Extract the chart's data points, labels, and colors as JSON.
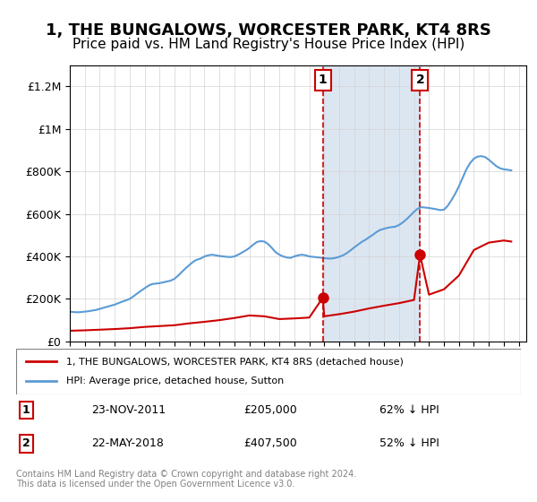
{
  "title": "1, THE BUNGALOWS, WORCESTER PARK, KT4 8RS",
  "subtitle": "Price paid vs. HM Land Registry's House Price Index (HPI)",
  "title_fontsize": 13,
  "subtitle_fontsize": 11,
  "xlabel": "",
  "ylabel": "",
  "ylim": [
    0,
    1300000
  ],
  "xlim_start": 1995.0,
  "xlim_end": 2025.5,
  "yticks": [
    0,
    200000,
    400000,
    600000,
    800000,
    1000000,
    1200000
  ],
  "ytick_labels": [
    "£0",
    "£200K",
    "£400K",
    "£600K",
    "£800K",
    "£1M",
    "£1.2M"
  ],
  "xticks": [
    1995,
    1996,
    1997,
    1998,
    1999,
    2000,
    2001,
    2002,
    2003,
    2004,
    2005,
    2006,
    2007,
    2008,
    2009,
    2010,
    2011,
    2012,
    2013,
    2014,
    2015,
    2016,
    2017,
    2018,
    2019,
    2020,
    2021,
    2022,
    2023,
    2024,
    2025
  ],
  "transaction1_x": 2011.9,
  "transaction1_y": 205000,
  "transaction1_label": "1",
  "transaction1_date": "23-NOV-2011",
  "transaction1_price": "£205,000",
  "transaction1_hpi": "62% ↓ HPI",
  "transaction2_x": 2018.4,
  "transaction2_y": 407500,
  "transaction2_label": "2",
  "transaction2_date": "22-MAY-2018",
  "transaction2_price": "£407,500",
  "transaction2_hpi": "52% ↓ HPI",
  "red_line_color": "#cc0000",
  "blue_line_color": "#5b9bd5",
  "blue_fill_color": "#dce6f1",
  "vline_color": "#cc0000",
  "legend_label_red": "1, THE BUNGALOWS, WORCESTER PARK, KT4 8RS (detached house)",
  "legend_label_blue": "HPI: Average price, detached house, Sutton",
  "footnote": "Contains HM Land Registry data © Crown copyright and database right 2024.\nThis data is licensed under the Open Government Licence v3.0.",
  "hpi_years": [
    1995.0,
    1995.25,
    1995.5,
    1995.75,
    1996.0,
    1996.25,
    1996.5,
    1996.75,
    1997.0,
    1997.25,
    1997.5,
    1997.75,
    1998.0,
    1998.25,
    1998.5,
    1998.75,
    1999.0,
    1999.25,
    1999.5,
    1999.75,
    2000.0,
    2000.25,
    2000.5,
    2000.75,
    2001.0,
    2001.25,
    2001.5,
    2001.75,
    2002.0,
    2002.25,
    2002.5,
    2002.75,
    2003.0,
    2003.25,
    2003.5,
    2003.75,
    2004.0,
    2004.25,
    2004.5,
    2004.75,
    2005.0,
    2005.25,
    2005.5,
    2005.75,
    2006.0,
    2006.25,
    2006.5,
    2006.75,
    2007.0,
    2007.25,
    2007.5,
    2007.75,
    2008.0,
    2008.25,
    2008.5,
    2008.75,
    2009.0,
    2009.25,
    2009.5,
    2009.75,
    2010.0,
    2010.25,
    2010.5,
    2010.75,
    2011.0,
    2011.25,
    2011.5,
    2011.75,
    2012.0,
    2012.25,
    2012.5,
    2012.75,
    2013.0,
    2013.25,
    2013.5,
    2013.75,
    2014.0,
    2014.25,
    2014.5,
    2014.75,
    2015.0,
    2015.25,
    2015.5,
    2015.75,
    2016.0,
    2016.25,
    2016.5,
    2016.75,
    2017.0,
    2017.25,
    2017.5,
    2017.75,
    2018.0,
    2018.25,
    2018.5,
    2018.75,
    2019.0,
    2019.25,
    2019.5,
    2019.75,
    2020.0,
    2020.25,
    2020.5,
    2020.75,
    2021.0,
    2021.25,
    2021.5,
    2021.75,
    2022.0,
    2022.25,
    2022.5,
    2022.75,
    2023.0,
    2023.25,
    2023.5,
    2023.75,
    2024.0,
    2024.25,
    2024.5
  ],
  "hpi_values": [
    140000,
    138000,
    137000,
    138000,
    140000,
    142000,
    145000,
    148000,
    153000,
    158000,
    163000,
    168000,
    173000,
    180000,
    187000,
    193000,
    200000,
    212000,
    225000,
    238000,
    250000,
    262000,
    270000,
    272000,
    274000,
    278000,
    282000,
    286000,
    295000,
    310000,
    328000,
    345000,
    360000,
    375000,
    385000,
    390000,
    400000,
    405000,
    408000,
    405000,
    402000,
    400000,
    398000,
    397000,
    400000,
    408000,
    418000,
    428000,
    440000,
    455000,
    468000,
    472000,
    470000,
    458000,
    440000,
    420000,
    408000,
    400000,
    395000,
    393000,
    400000,
    405000,
    408000,
    405000,
    400000,
    398000,
    396000,
    394000,
    392000,
    390000,
    390000,
    393000,
    398000,
    405000,
    415000,
    428000,
    442000,
    455000,
    468000,
    478000,
    490000,
    502000,
    515000,
    525000,
    530000,
    535000,
    538000,
    540000,
    548000,
    560000,
    575000,
    592000,
    610000,
    625000,
    632000,
    630000,
    628000,
    625000,
    622000,
    618000,
    620000,
    638000,
    665000,
    695000,
    730000,
    770000,
    810000,
    840000,
    860000,
    870000,
    872000,
    868000,
    855000,
    840000,
    825000,
    815000,
    810000,
    808000,
    805000
  ],
  "red_years": [
    1995.0,
    1996.0,
    1997.0,
    1998.0,
    1999.0,
    2000.0,
    2001.0,
    2002.0,
    2003.0,
    2004.0,
    2005.0,
    2006.0,
    2007.0,
    2008.0,
    2009.0,
    2010.0,
    2011.0,
    2011.9,
    2012.0,
    2013.0,
    2014.0,
    2015.0,
    2016.0,
    2017.0,
    2018.0,
    2018.4,
    2019.0,
    2020.0,
    2021.0,
    2022.0,
    2023.0,
    2024.0,
    2024.5
  ],
  "red_values": [
    50000,
    52000,
    55000,
    58000,
    62000,
    68000,
    72000,
    76000,
    85000,
    92000,
    100000,
    110000,
    122000,
    118000,
    105000,
    108000,
    112000,
    205000,
    118000,
    128000,
    140000,
    155000,
    168000,
    180000,
    195000,
    407500,
    220000,
    245000,
    310000,
    430000,
    465000,
    475000,
    470000
  ]
}
